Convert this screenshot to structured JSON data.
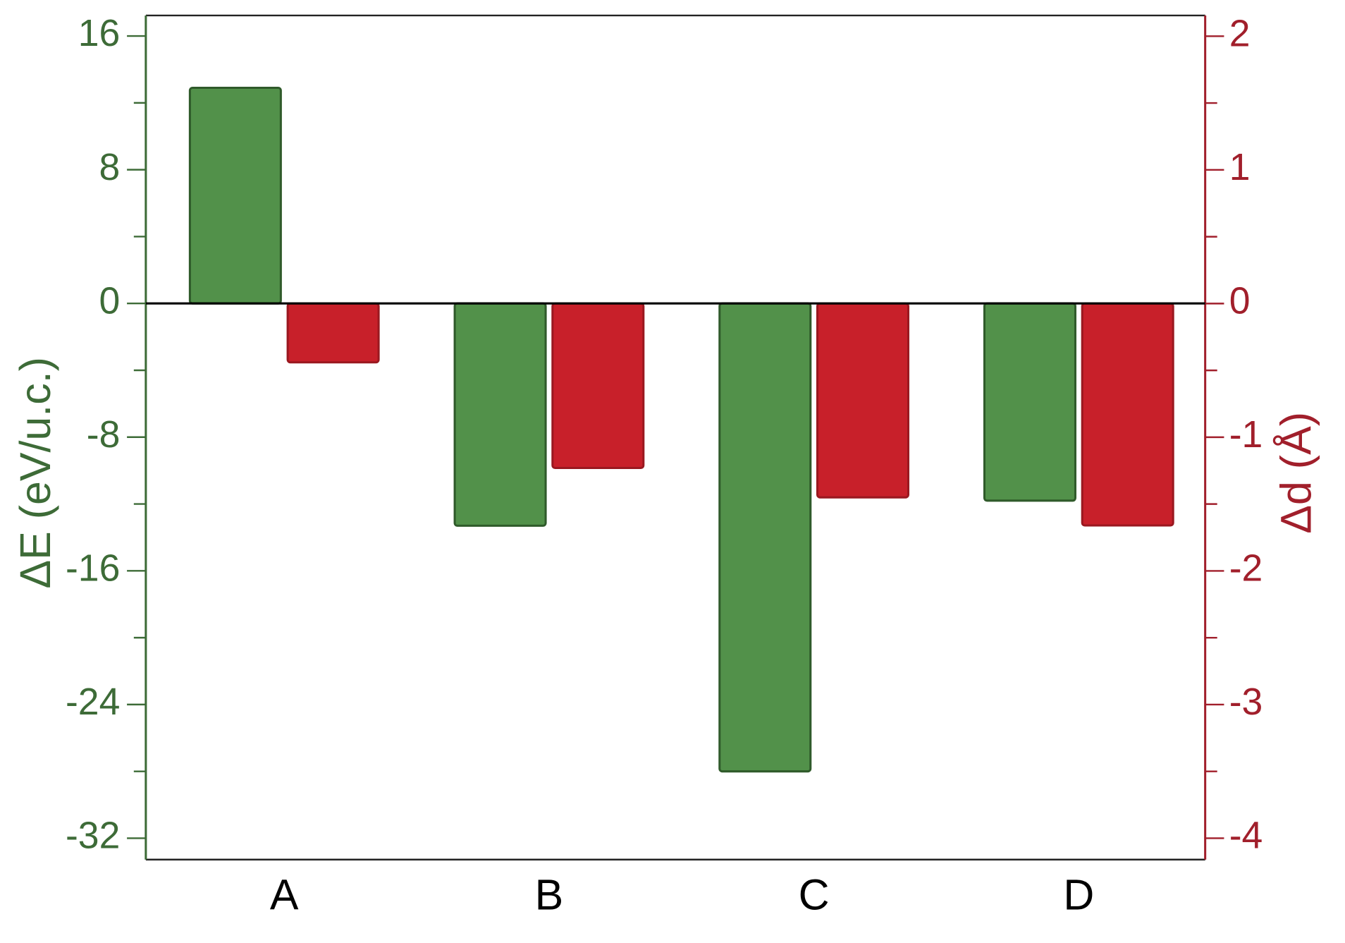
{
  "chart_data": {
    "type": "bar",
    "categories": [
      "A",
      "B",
      "C",
      "D"
    ],
    "series": [
      {
        "name": "ΔE",
        "color": "#52914a",
        "values": [
          12.9,
          -13.3,
          -28.0,
          -11.8
        ]
      },
      {
        "name": "Δd",
        "color": "#c8202a",
        "axis": "y2",
        "values": [
          -0.44,
          -1.23,
          -1.45,
          -1.66
        ]
      }
    ],
    "ylabel": "ΔE (eV/u.c.)",
    "y2label": "Δd (Å)",
    "ylim": [
      -33.28,
      17.23
    ],
    "yticks": [
      16,
      8,
      0,
      -8,
      -16,
      -24,
      -32
    ],
    "y2lim": [
      -4.16,
      2.155
    ],
    "y2ticks": [
      2,
      1,
      0,
      -1,
      -2,
      -3,
      -4
    ],
    "ycolor": "#3d6b37",
    "y2color": "#a11f2b"
  }
}
